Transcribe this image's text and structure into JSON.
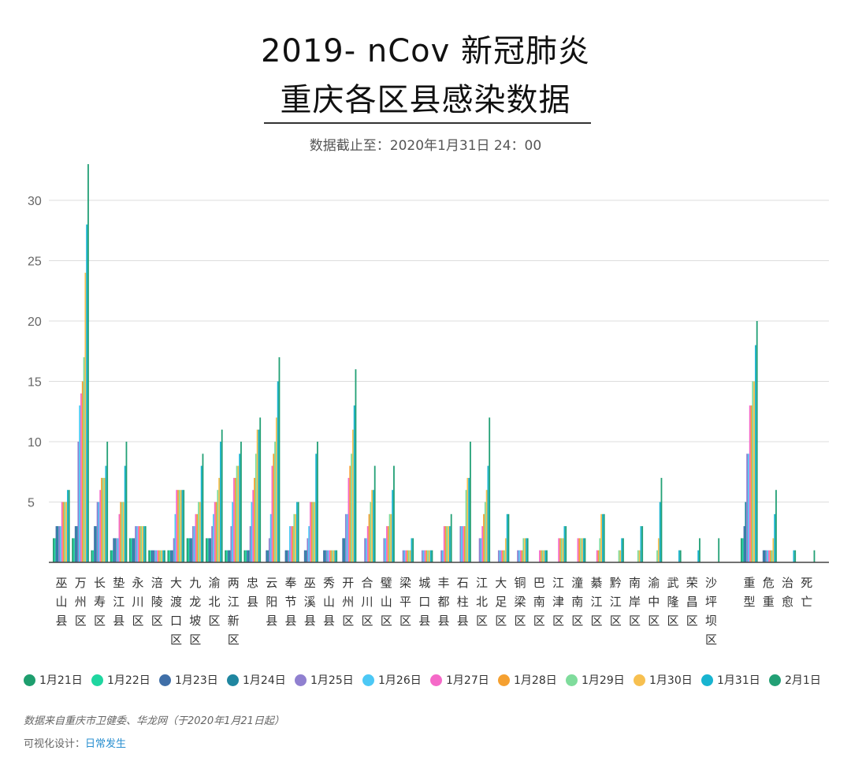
{
  "title_line1": "2019- nCov 新冠肺炎",
  "title_line2": "重庆各区县感染数据",
  "subtitle": "数据截止至：2020年1月31日 24：00",
  "source": "数据来自重庆市卫健委、华龙网（于2020年1月21日起）",
  "design_label": "可视化设计：",
  "design_name": "日常发生",
  "chart_data": {
    "type": "bar",
    "ylim": [
      0,
      33
    ],
    "yticks": [
      5,
      10,
      15,
      20,
      25,
      30
    ],
    "grid": true,
    "legend_position": "bottom",
    "categories": [
      "巫山县",
      "万州区",
      "长寿区",
      "垫江县",
      "永川区",
      "涪陵区",
      "大渡口区",
      "九龙坡区",
      "渝北区",
      "两江新区",
      "忠县",
      "云阳县",
      "奉节县",
      "巫溪县",
      "秀山县",
      "开州区",
      "合川区",
      "璧山区",
      "梁平区",
      "城口县",
      "丰都县",
      "石柱县",
      "江北区",
      "大足区",
      "铜梁区",
      "巴南区",
      "江津区",
      "潼南区",
      "綦江区",
      "黔江区",
      "南岸区",
      "渝中区",
      "武隆区",
      "荣昌区",
      "沙坪坝区",
      "",
      "重型",
      "危重",
      "治愈",
      "死亡"
    ],
    "series_names": [
      "1月21日",
      "1月22日",
      "1月23日",
      "1月24日",
      "1月25日",
      "1月26日",
      "1月27日",
      "1月28日",
      "1月29日",
      "1月30日",
      "1月31日",
      "2月1日"
    ],
    "colors": [
      "#1e9e6e",
      "#1fd6a0",
      "#3f6fa8",
      "#1f86a0",
      "#9080d0",
      "#4cc8f5",
      "#f569c8",
      "#f5a030",
      "#7fdc9c",
      "#f7c050",
      "#18b4d0",
      "#22a075"
    ],
    "values": [
      [
        2,
        2,
        3,
        3,
        3,
        3,
        5,
        5,
        5,
        5,
        6,
        6
      ],
      [
        2,
        2,
        3,
        3,
        10,
        13,
        14,
        15,
        17,
        24,
        28,
        33
      ],
      [
        1,
        1,
        3,
        3,
        5,
        5,
        6,
        7,
        7,
        7,
        8,
        10
      ],
      [
        1,
        1,
        2,
        2,
        2,
        2,
        4,
        5,
        5,
        5,
        8,
        10
      ],
      [
        2,
        2,
        2,
        2,
        3,
        3,
        3,
        3,
        3,
        3,
        3,
        3
      ],
      [
        1,
        1,
        1,
        1,
        1,
        1,
        1,
        1,
        1,
        1,
        1,
        1
      ],
      [
        1,
        1,
        1,
        1,
        2,
        4,
        6,
        6,
        6,
        6,
        6,
        6
      ],
      [
        2,
        2,
        2,
        2,
        3,
        3,
        4,
        4,
        5,
        5,
        8,
        9
      ],
      [
        2,
        2,
        2,
        2,
        3,
        4,
        5,
        5,
        6,
        7,
        10,
        11
      ],
      [
        1,
        1,
        1,
        1,
        3,
        5,
        7,
        7,
        8,
        8,
        9,
        10
      ],
      [
        1,
        1,
        1,
        1,
        3,
        5,
        6,
        7,
        9,
        11,
        11,
        12
      ],
      [
        0,
        0,
        1,
        1,
        2,
        4,
        8,
        9,
        10,
        12,
        15,
        17
      ],
      [
        0,
        0,
        1,
        1,
        1,
        3,
        3,
        3,
        4,
        4,
        5,
        5
      ],
      [
        0,
        0,
        1,
        1,
        2,
        3,
        5,
        5,
        5,
        5,
        9,
        10
      ],
      [
        0,
        0,
        1,
        1,
        1,
        1,
        1,
        1,
        1,
        1,
        1,
        1
      ],
      [
        0,
        0,
        2,
        2,
        4,
        4,
        7,
        8,
        9,
        11,
        13,
        16
      ],
      [
        0,
        0,
        0,
        0,
        2,
        2,
        3,
        4,
        5,
        6,
        6,
        8
      ],
      [
        0,
        0,
        0,
        0,
        2,
        2,
        3,
        3,
        4,
        4,
        6,
        8
      ],
      [
        0,
        0,
        0,
        0,
        1,
        1,
        1,
        1,
        1,
        1,
        2,
        2
      ],
      [
        0,
        0,
        0,
        0,
        1,
        1,
        1,
        1,
        1,
        1,
        1,
        1
      ],
      [
        0,
        0,
        0,
        0,
        1,
        1,
        3,
        3,
        3,
        3,
        3,
        4
      ],
      [
        0,
        0,
        0,
        0,
        3,
        3,
        3,
        3,
        6,
        7,
        7,
        10
      ],
      [
        0,
        0,
        0,
        0,
        2,
        2,
        3,
        4,
        5,
        6,
        8,
        12
      ],
      [
        0,
        0,
        0,
        0,
        1,
        1,
        1,
        1,
        1,
        2,
        4,
        4
      ],
      [
        0,
        0,
        0,
        0,
        1,
        1,
        1,
        1,
        2,
        2,
        2,
        2
      ],
      [
        0,
        0,
        0,
        0,
        0,
        0,
        1,
        1,
        1,
        1,
        1,
        1
      ],
      [
        0,
        0,
        0,
        0,
        0,
        0,
        2,
        2,
        2,
        2,
        3,
        3
      ],
      [
        0,
        0,
        0,
        0,
        0,
        0,
        2,
        2,
        2,
        2,
        2,
        2
      ],
      [
        0,
        0,
        0,
        0,
        0,
        0,
        1,
        1,
        2,
        4,
        4,
        4
      ],
      [
        0,
        0,
        0,
        0,
        0,
        0,
        0,
        0,
        1,
        1,
        2,
        2
      ],
      [
        0,
        0,
        0,
        0,
        0,
        0,
        0,
        0,
        1,
        1,
        3,
        3
      ],
      [
        0,
        0,
        0,
        0,
        0,
        0,
        0,
        0,
        1,
        2,
        5,
        7
      ],
      [
        0,
        0,
        0,
        0,
        0,
        0,
        0,
        0,
        0,
        0,
        1,
        1
      ],
      [
        0,
        0,
        0,
        0,
        0,
        0,
        0,
        0,
        0,
        0,
        1,
        2
      ],
      [
        0,
        0,
        0,
        0,
        0,
        0,
        0,
        0,
        0,
        0,
        0,
        2
      ],
      [],
      [
        2,
        2,
        3,
        5,
        9,
        9,
        13,
        13,
        15,
        15,
        18,
        20
      ],
      [
        0,
        0,
        1,
        1,
        1,
        1,
        1,
        1,
        1,
        2,
        4,
        6
      ],
      [
        0,
        0,
        0,
        0,
        0,
        0,
        0,
        0,
        0,
        0,
        1,
        1
      ],
      [
        0,
        0,
        0,
        0,
        0,
        0,
        0,
        0,
        0,
        0,
        0,
        1
      ]
    ]
  }
}
